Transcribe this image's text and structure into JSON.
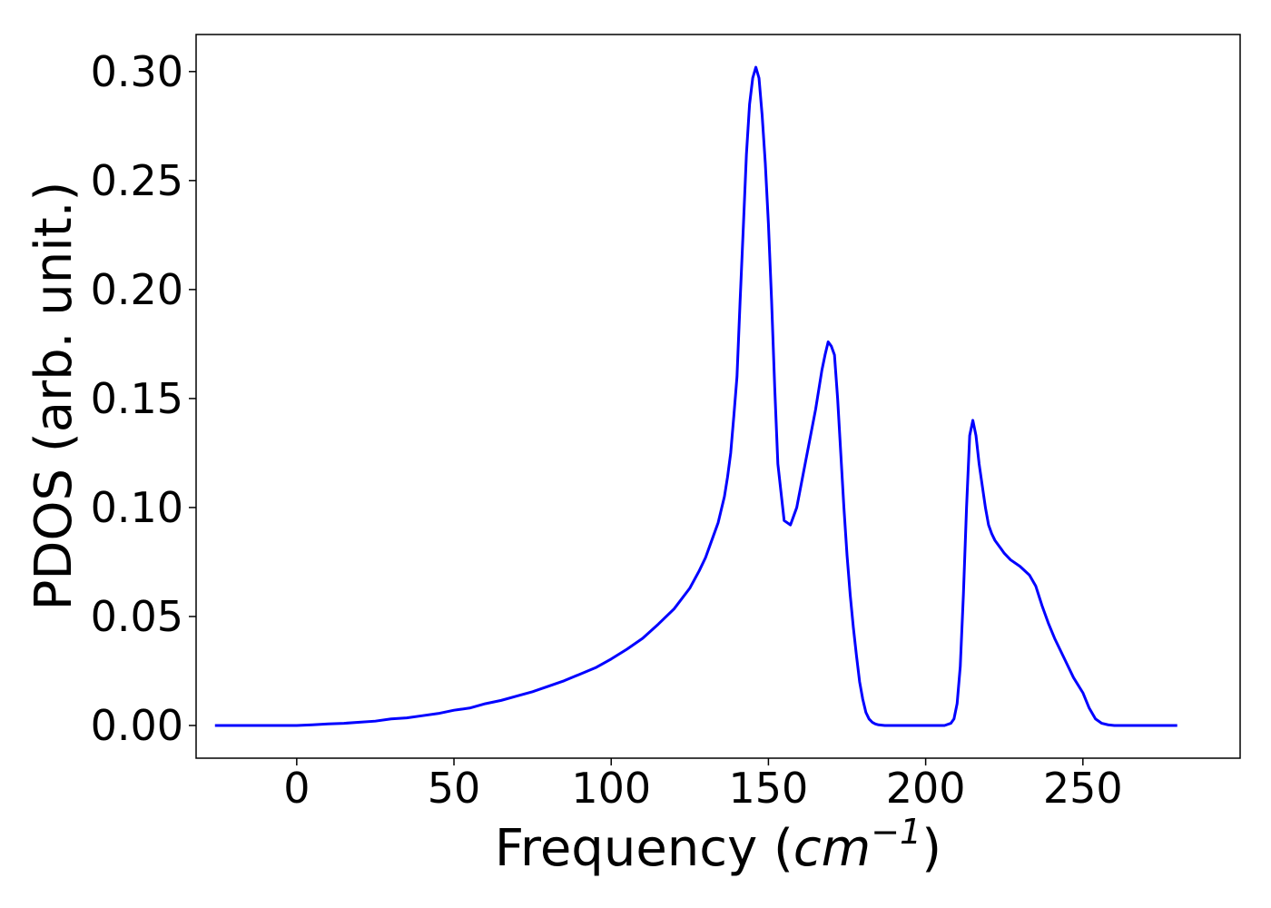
{
  "chart_data": {
    "type": "line",
    "title": "",
    "xlabel": {
      "prefix": "Frequency (",
      "italic": "cm",
      "superscript": "−1",
      "suffix": ")"
    },
    "ylabel": "PDOS (arb. unit.)",
    "xlim": [
      -32,
      300
    ],
    "ylim": [
      -0.015,
      0.317
    ],
    "x_ticks": [
      0,
      50,
      100,
      150,
      200,
      250
    ],
    "x_tick_labels": [
      "0",
      "50",
      "100",
      "150",
      "200",
      "250"
    ],
    "y_ticks": [
      0,
      0.05,
      0.1,
      0.15,
      0.2,
      0.25,
      0.3
    ],
    "y_tick_labels": [
      "0.00",
      "0.05",
      "0.10",
      "0.15",
      "0.20",
      "0.25",
      "0.30"
    ],
    "grid": false,
    "legend": false,
    "series": [
      {
        "color": "#0000ff",
        "x": [
          -26,
          0,
          5,
          10,
          15,
          20,
          25,
          30,
          35,
          40,
          45,
          50,
          55,
          60,
          65,
          70,
          75,
          80,
          85,
          90,
          95,
          100,
          105,
          110,
          115,
          120,
          125,
          128,
          130,
          132,
          134,
          136,
          137,
          138,
          139,
          140,
          141,
          142,
          143,
          144,
          145,
          146,
          147,
          148,
          149,
          150,
          151,
          152,
          153,
          155,
          157,
          159,
          161,
          163,
          165,
          167,
          168,
          169,
          170,
          171,
          172,
          173,
          174,
          175,
          176,
          177,
          178,
          179,
          180,
          181,
          182,
          183,
          184,
          185,
          187,
          190,
          200,
          206,
          208,
          209,
          210,
          211,
          212,
          213,
          214,
          215,
          216,
          217,
          218,
          219,
          220,
          221,
          222,
          223,
          224,
          225,
          227,
          230,
          233,
          235,
          237,
          239,
          241,
          243,
          245,
          247,
          250,
          252,
          254,
          256,
          258,
          260,
          262,
          265,
          270,
          280
        ],
        "y": [
          0,
          0,
          0.0003,
          0.0007,
          0.001,
          0.0015,
          0.002,
          0.003,
          0.0035,
          0.0045,
          0.0055,
          0.007,
          0.008,
          0.01,
          0.0115,
          0.0135,
          0.0155,
          0.018,
          0.0205,
          0.0235,
          0.0265,
          0.0305,
          0.035,
          0.04,
          0.0465,
          0.0535,
          0.063,
          0.071,
          0.077,
          0.085,
          0.093,
          0.105,
          0.114,
          0.125,
          0.142,
          0.16,
          0.195,
          0.228,
          0.262,
          0.285,
          0.297,
          0.302,
          0.297,
          0.28,
          0.258,
          0.23,
          0.195,
          0.155,
          0.12,
          0.094,
          0.092,
          0.1,
          0.115,
          0.13,
          0.145,
          0.163,
          0.17,
          0.176,
          0.174,
          0.17,
          0.15,
          0.125,
          0.1,
          0.078,
          0.06,
          0.045,
          0.032,
          0.02,
          0.012,
          0.006,
          0.003,
          0.0015,
          0.0007,
          0.0003,
          0,
          0,
          0,
          0,
          0.001,
          0.003,
          0.01,
          0.027,
          0.06,
          0.1,
          0.133,
          0.14,
          0.133,
          0.12,
          0.11,
          0.1,
          0.092,
          0.088,
          0.085,
          0.083,
          0.081,
          0.079,
          0.076,
          0.073,
          0.069,
          0.064,
          0.055,
          0.047,
          0.04,
          0.034,
          0.028,
          0.022,
          0.015,
          0.008,
          0.003,
          0.001,
          0.0003,
          0,
          0,
          0,
          0,
          0
        ]
      }
    ]
  }
}
